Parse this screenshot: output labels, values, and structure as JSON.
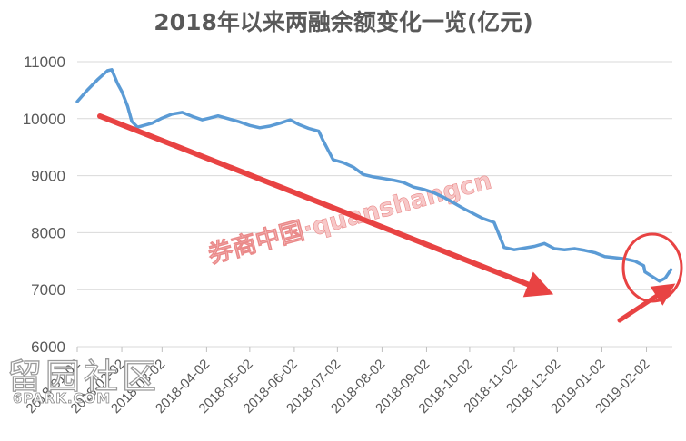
{
  "chart_data": {
    "type": "line",
    "title": "2018年以来两融余额变化一览(亿元)",
    "xlabel": "",
    "ylabel": "",
    "ylim": [
      6000,
      11000
    ],
    "yticks": [
      6000,
      7000,
      8000,
      9000,
      10000,
      11000
    ],
    "x_tick_labels": [
      "2018-01-02",
      "2018-02-02",
      "2018-03-02",
      "2018-04-02",
      "2018-05-02",
      "2018-06-02",
      "2018-07-02",
      "2018-08-02",
      "2018-09-02",
      "2018-10-02",
      "2018-11-02",
      "2018-12-02",
      "2019-01-02",
      "2019-02-02"
    ],
    "grid": "horizontal",
    "series": [
      {
        "color": "#5b9bd5",
        "x": [
          "2018-01-02",
          "2018-01-09",
          "2018-01-16",
          "2018-01-23",
          "2018-01-26",
          "2018-01-30",
          "2018-02-02",
          "2018-02-06",
          "2018-02-09",
          "2018-02-13",
          "2018-02-23",
          "2018-03-02",
          "2018-03-09",
          "2018-03-16",
          "2018-03-23",
          "2018-03-30",
          "2018-04-04",
          "2018-04-10",
          "2018-04-17",
          "2018-04-24",
          "2018-05-02",
          "2018-05-09",
          "2018-05-16",
          "2018-05-23",
          "2018-05-30",
          "2018-06-05",
          "2018-06-12",
          "2018-06-19",
          "2018-06-22",
          "2018-06-29",
          "2018-07-06",
          "2018-07-13",
          "2018-07-20",
          "2018-07-27",
          "2018-08-03",
          "2018-08-10",
          "2018-08-17",
          "2018-08-24",
          "2018-08-31",
          "2018-09-07",
          "2018-09-14",
          "2018-09-21",
          "2018-09-28",
          "2018-10-11",
          "2018-10-19",
          "2018-10-26",
          "2018-11-02",
          "2018-11-09",
          "2018-11-16",
          "2018-11-23",
          "2018-11-30",
          "2018-12-07",
          "2018-12-14",
          "2018-12-21",
          "2018-12-28",
          "2019-01-04",
          "2019-01-11",
          "2019-01-18",
          "2019-01-25",
          "2019-01-31",
          "2019-02-01",
          "2019-02-11",
          "2019-02-15",
          "2019-02-19"
        ],
        "values": [
          10300,
          10500,
          10680,
          10840,
          10860,
          10620,
          10480,
          10220,
          9950,
          9850,
          9920,
          10010,
          10080,
          10110,
          10040,
          9980,
          10010,
          10050,
          10000,
          9950,
          9880,
          9840,
          9870,
          9920,
          9980,
          9900,
          9830,
          9780,
          9620,
          9280,
          9230,
          9150,
          9020,
          8980,
          8950,
          8920,
          8880,
          8800,
          8760,
          8700,
          8620,
          8520,
          8420,
          8250,
          8180,
          7740,
          7700,
          7730,
          7760,
          7810,
          7720,
          7700,
          7720,
          7690,
          7650,
          7580,
          7560,
          7540,
          7500,
          7420,
          7310,
          7150,
          7200,
          7350
        ]
      }
    ]
  },
  "watermark": "券商中国·quanshangcn",
  "site_mark": {
    "characters": "留园社区",
    "domain": "6PARK.COM"
  }
}
